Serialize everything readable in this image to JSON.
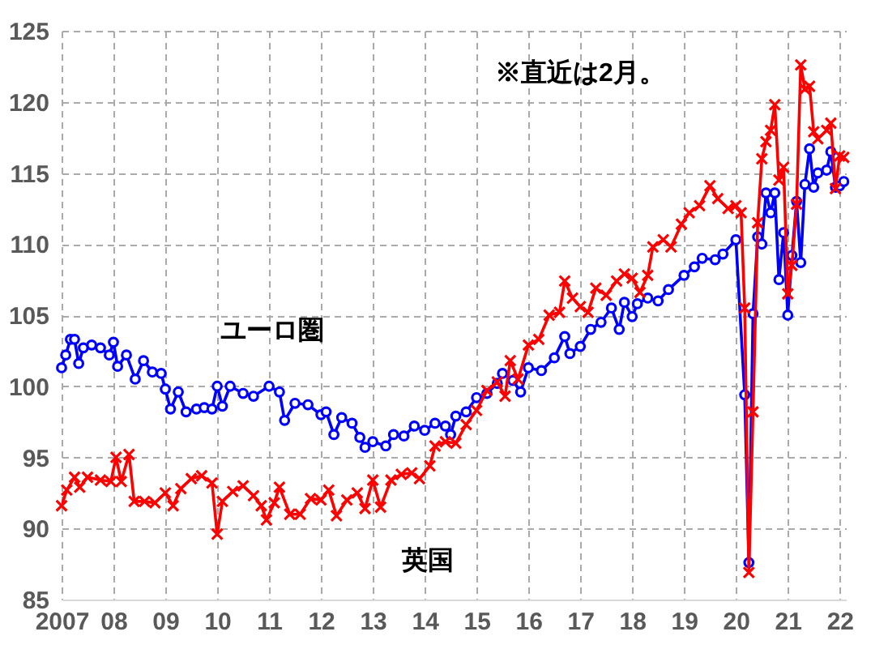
{
  "chart_data": {
    "type": "line",
    "annotations": [
      "※直近は2月。"
    ],
    "xlim": [
      2007,
      2022.12
    ],
    "ylim": [
      85,
      125
    ],
    "xticks": [
      2007,
      {
        "value": 2008,
        "label": "08"
      },
      {
        "value": 2009,
        "label": "09"
      },
      {
        "value": 2010,
        "label": "10"
      },
      {
        "value": 2011,
        "label": "11"
      },
      {
        "value": 2012,
        "label": "12"
      },
      {
        "value": 2013,
        "label": "13"
      },
      {
        "value": 2014,
        "label": "14"
      },
      {
        "value": 2015,
        "label": "15"
      },
      {
        "value": 2016,
        "label": "16"
      },
      {
        "value": 2017,
        "label": "17"
      },
      {
        "value": 2018,
        "label": "18"
      },
      {
        "value": 2019,
        "label": "19"
      },
      {
        "value": 2020,
        "label": "20"
      },
      {
        "value": 2021,
        "label": "21"
      },
      {
        "value": 2022,
        "label": "22"
      }
    ],
    "yticks": [
      85,
      90,
      95,
      100,
      105,
      110,
      115,
      120,
      125
    ],
    "grid": true,
    "line_style": "solid",
    "series": [
      {
        "name": "ユーロ圏",
        "color": "#0000ff",
        "marker": "circle",
        "x": [
          2007.0,
          2007.08,
          2007.17,
          2007.25,
          2007.33,
          2007.42,
          2007.58,
          2007.75,
          2007.92,
          2008.0,
          2008.08,
          2008.25,
          2008.42,
          2008.58,
          2008.75,
          2008.92,
          2009.0,
          2009.1,
          2009.25,
          2009.4,
          2009.6,
          2009.75,
          2009.9,
          2010.0,
          2010.1,
          2010.25,
          2010.5,
          2010.7,
          2011.0,
          2011.2,
          2011.3,
          2011.5,
          2011.75,
          2012.0,
          2012.1,
          2012.25,
          2012.4,
          2012.6,
          2012.75,
          2012.85,
          2013.0,
          2013.25,
          2013.4,
          2013.6,
          2013.8,
          2014.0,
          2014.2,
          2014.4,
          2014.5,
          2014.6,
          2014.8,
          2015.0,
          2015.2,
          2015.4,
          2015.5,
          2015.7,
          2015.85,
          2016.0,
          2016.25,
          2016.5,
          2016.7,
          2016.8,
          2017.0,
          2017.2,
          2017.4,
          2017.6,
          2017.75,
          2017.85,
          2018.0,
          2018.1,
          2018.3,
          2018.5,
          2018.7,
          2019.0,
          2019.2,
          2019.35,
          2019.6,
          2019.75,
          2020.0,
          2020.17,
          2020.25,
          2020.33,
          2020.42,
          2020.5,
          2020.58,
          2020.67,
          2020.75,
          2020.83,
          2020.92,
          2021.0,
          2021.08,
          2021.17,
          2021.25,
          2021.33,
          2021.42,
          2021.5,
          2021.58,
          2021.75,
          2021.83,
          2021.92,
          2022.0,
          2022.08
        ],
        "values": [
          101.3,
          102.2,
          103.3,
          103.3,
          101.6,
          102.7,
          102.9,
          102.7,
          102.2,
          103.1,
          101.4,
          102.2,
          100.5,
          101.8,
          101.0,
          100.9,
          99.8,
          98.4,
          99.6,
          98.2,
          98.4,
          98.5,
          98.4,
          100.0,
          98.6,
          100.0,
          99.5,
          99.3,
          100.0,
          99.6,
          97.6,
          98.8,
          98.7,
          98.0,
          98.2,
          96.6,
          97.8,
          97.4,
          96.4,
          95.7,
          96.1,
          95.8,
          96.6,
          96.5,
          97.2,
          96.9,
          97.4,
          97.2,
          96.6,
          97.9,
          98.2,
          99.2,
          99.5,
          100.2,
          100.9,
          100.4,
          99.6,
          101.3,
          101.1,
          102.0,
          103.5,
          102.3,
          102.8,
          104.0,
          104.5,
          105.5,
          104.0,
          105.9,
          104.9,
          105.8,
          106.2,
          106.0,
          106.8,
          107.8,
          108.4,
          109.0,
          108.9,
          109.3,
          110.3,
          99.4,
          87.6,
          105.1,
          110.5,
          110.0,
          113.6,
          112.2,
          113.6,
          107.5,
          110.8,
          105.0,
          109.2,
          113.0,
          108.7,
          114.2,
          116.7,
          114.0,
          115.0,
          115.2,
          116.5,
          114.0,
          114.1,
          114.4
        ]
      },
      {
        "name": "英国",
        "color": "#ff0000",
        "marker": "cross",
        "x": [
          2007.0,
          2007.1,
          2007.25,
          2007.35,
          2007.5,
          2007.75,
          2007.95,
          2008.05,
          2008.15,
          2008.3,
          2008.4,
          2008.6,
          2008.8,
          2009.0,
          2009.15,
          2009.3,
          2009.5,
          2009.7,
          2009.9,
          2010.0,
          2010.1,
          2010.3,
          2010.5,
          2010.7,
          2010.85,
          2010.95,
          2011.1,
          2011.2,
          2011.4,
          2011.6,
          2011.8,
          2012.0,
          2012.15,
          2012.3,
          2012.5,
          2012.7,
          2012.85,
          2013.0,
          2013.15,
          2013.35,
          2013.55,
          2013.75,
          2013.9,
          2014.1,
          2014.2,
          2014.4,
          2014.6,
          2014.8,
          2015.0,
          2015.2,
          2015.4,
          2015.55,
          2015.65,
          2015.8,
          2016.0,
          2016.2,
          2016.4,
          2016.6,
          2016.7,
          2016.85,
          2017.0,
          2017.15,
          2017.3,
          2017.5,
          2017.7,
          2017.85,
          2018.0,
          2018.15,
          2018.3,
          2018.4,
          2018.6,
          2018.75,
          2018.95,
          2019.1,
          2019.3,
          2019.5,
          2019.65,
          2019.85,
          2020.0,
          2020.1,
          2020.17,
          2020.25,
          2020.33,
          2020.42,
          2020.5,
          2020.58,
          2020.67,
          2020.75,
          2020.83,
          2020.92,
          2021.0,
          2021.08,
          2021.17,
          2021.25,
          2021.33,
          2021.42,
          2021.5,
          2021.58,
          2021.75,
          2021.83,
          2021.92,
          2022.0,
          2022.08
        ],
        "values": [
          91.6,
          92.7,
          93.6,
          92.9,
          93.6,
          93.4,
          93.3,
          95.0,
          93.3,
          95.2,
          91.9,
          91.9,
          91.8,
          92.5,
          91.6,
          92.8,
          93.5,
          93.7,
          93.2,
          89.6,
          91.9,
          92.6,
          93.0,
          92.3,
          91.6,
          90.6,
          91.8,
          92.9,
          91.0,
          91.0,
          92.1,
          92.0,
          92.7,
          90.9,
          92.0,
          92.5,
          91.4,
          93.4,
          91.5,
          93.4,
          93.8,
          93.9,
          93.5,
          94.4,
          95.8,
          96.1,
          96.0,
          97.3,
          98.3,
          99.7,
          100.3,
          99.3,
          101.8,
          100.5,
          102.9,
          103.3,
          105.0,
          105.2,
          107.4,
          106.2,
          105.6,
          105.2,
          106.9,
          106.4,
          107.4,
          107.9,
          107.6,
          106.6,
          107.8,
          109.8,
          110.3,
          109.8,
          111.4,
          112.2,
          112.7,
          114.1,
          113.2,
          112.5,
          112.7,
          112.2,
          105.5,
          86.9,
          98.2,
          111.5,
          116.0,
          117.2,
          118.0,
          119.8,
          114.5,
          115.4,
          106.5,
          108.5,
          112.8,
          122.6,
          120.9,
          121.1,
          117.9,
          117.4,
          118.0,
          118.5,
          113.9,
          116.2,
          116.1
        ]
      }
    ]
  }
}
